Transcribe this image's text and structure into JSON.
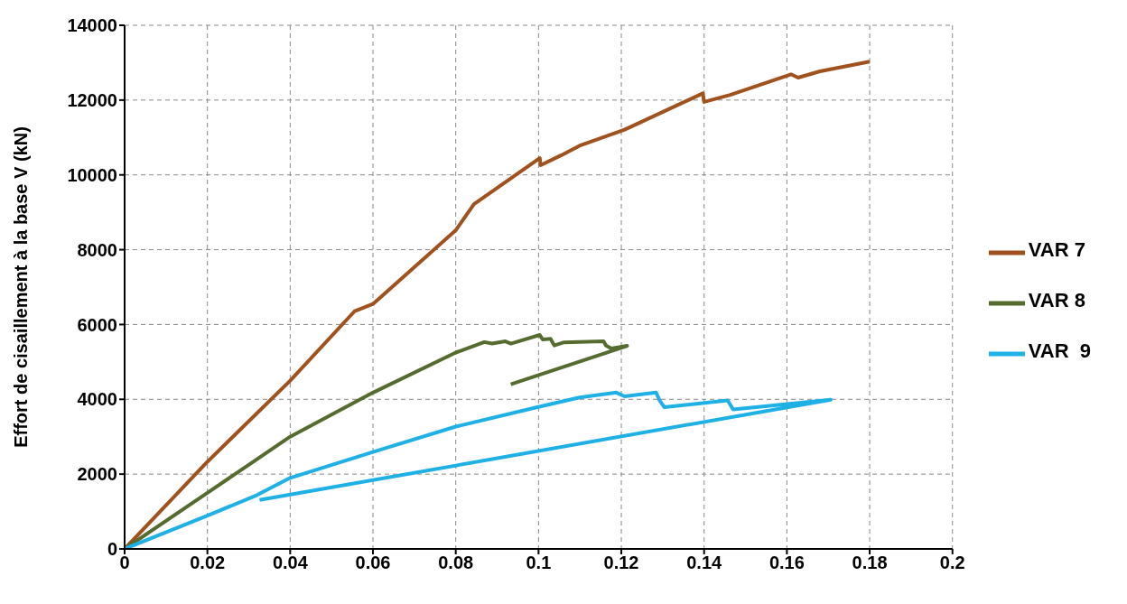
{
  "chart_data": {
    "type": "line",
    "ylabel": "Effort de cisaillement à la base V (kN)",
    "xlim": [
      0,
      0.2
    ],
    "xticks": [
      0,
      0.02,
      0.04,
      0.06,
      0.08,
      0.1,
      0.12,
      0.14,
      0.16,
      0.18,
      0.2
    ],
    "ylim": [
      0,
      14000
    ],
    "yticks": [
      0,
      2000,
      4000,
      6000,
      8000,
      10000,
      12000,
      14000
    ],
    "grid": true,
    "legend": "right",
    "marker": "none",
    "line_style": "solid",
    "series": [
      {
        "name": "VAR 7",
        "color": "#a0521e",
        "x": [
          0,
          0.02,
          0.04,
          0.0556,
          0.06,
          0.08,
          0.0844,
          0.1003,
          0.1005,
          0.1054,
          0.1099,
          0.1208,
          0.1397,
          0.14,
          0.1463,
          0.161,
          0.1627,
          0.168,
          0.18
        ],
        "values": [
          0,
          2330,
          4500,
          6360,
          6550,
          8520,
          9220,
          10450,
          10260,
          10520,
          10780,
          11210,
          12180,
          11950,
          12140,
          12690,
          12600,
          12770,
          13030
        ]
      },
      {
        "name": "VAR 8",
        "color": "#566b2f",
        "x": [
          0,
          0.02,
          0.04,
          0.06,
          0.08,
          0.0869,
          0.0888,
          0.092,
          0.0933,
          0.1003,
          0.101,
          0.1029,
          0.1038,
          0.106,
          0.1157,
          0.1163,
          0.1176,
          0.1214,
          0.0933
        ],
        "values": [
          0,
          1500,
          3000,
          4180,
          5250,
          5530,
          5490,
          5550,
          5490,
          5720,
          5600,
          5620,
          5440,
          5520,
          5550,
          5440,
          5360,
          5430,
          4400
        ]
      },
      {
        "name": "VAR  9",
        "color": "#1fb0e6",
        "x": [
          0,
          0.02,
          0.032,
          0.04,
          0.06,
          0.08,
          0.0997,
          0.1099,
          0.1188,
          0.1208,
          0.1284,
          0.1293,
          0.1304,
          0.1457,
          0.147,
          0.1706,
          0.0326
        ],
        "values": [
          0,
          890,
          1440,
          1900,
          2590,
          3270,
          3790,
          4050,
          4180,
          4080,
          4180,
          3960,
          3790,
          3970,
          3730,
          3990,
          1310
        ]
      }
    ]
  }
}
